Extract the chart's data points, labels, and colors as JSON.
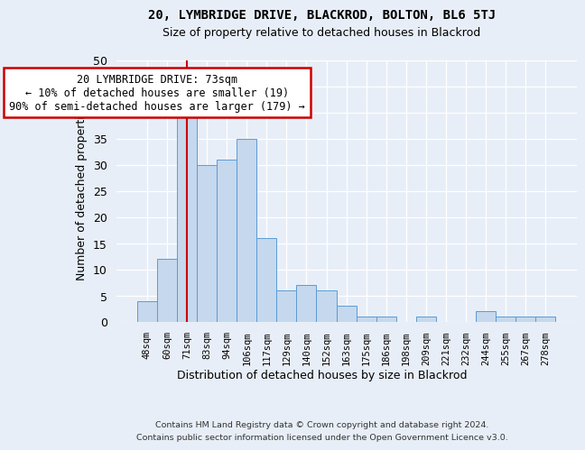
{
  "title1": "20, LYMBRIDGE DRIVE, BLACKROD, BOLTON, BL6 5TJ",
  "title2": "Size of property relative to detached houses in Blackrod",
  "xlabel": "Distribution of detached houses by size in Blackrod",
  "ylabel": "Number of detached properties",
  "categories": [
    "48sqm",
    "60sqm",
    "71sqm",
    "83sqm",
    "94sqm",
    "106sqm",
    "117sqm",
    "129sqm",
    "140sqm",
    "152sqm",
    "163sqm",
    "175sqm",
    "186sqm",
    "198sqm",
    "209sqm",
    "221sqm",
    "232sqm",
    "244sqm",
    "255sqm",
    "267sqm",
    "278sqm"
  ],
  "values": [
    4,
    12,
    42,
    30,
    31,
    35,
    16,
    6,
    7,
    6,
    3,
    1,
    1,
    0,
    1,
    0,
    0,
    2,
    1,
    1,
    1
  ],
  "bar_color": "#c5d8ed",
  "bar_edge_color": "#5b9bd5",
  "vline_x_index": 2,
  "vline_color": "#cc0000",
  "annotation_title": "20 LYMBRIDGE DRIVE: 73sqm",
  "annotation_line1": "← 10% of detached houses are smaller (19)",
  "annotation_line2": "90% of semi-detached houses are larger (179) →",
  "annotation_box_color": "#ffffff",
  "annotation_box_edge_color": "#cc0000",
  "ylim": [
    0,
    50
  ],
  "yticks": [
    0,
    5,
    10,
    15,
    20,
    25,
    30,
    35,
    40,
    45,
    50
  ],
  "bg_color": "#e8eef7",
  "plot_bg_color": "#e8eef7",
  "grid_color": "#ffffff",
  "footer_line1": "Contains HM Land Registry data © Crown copyright and database right 2024.",
  "footer_line2": "Contains public sector information licensed under the Open Government Licence v3.0."
}
